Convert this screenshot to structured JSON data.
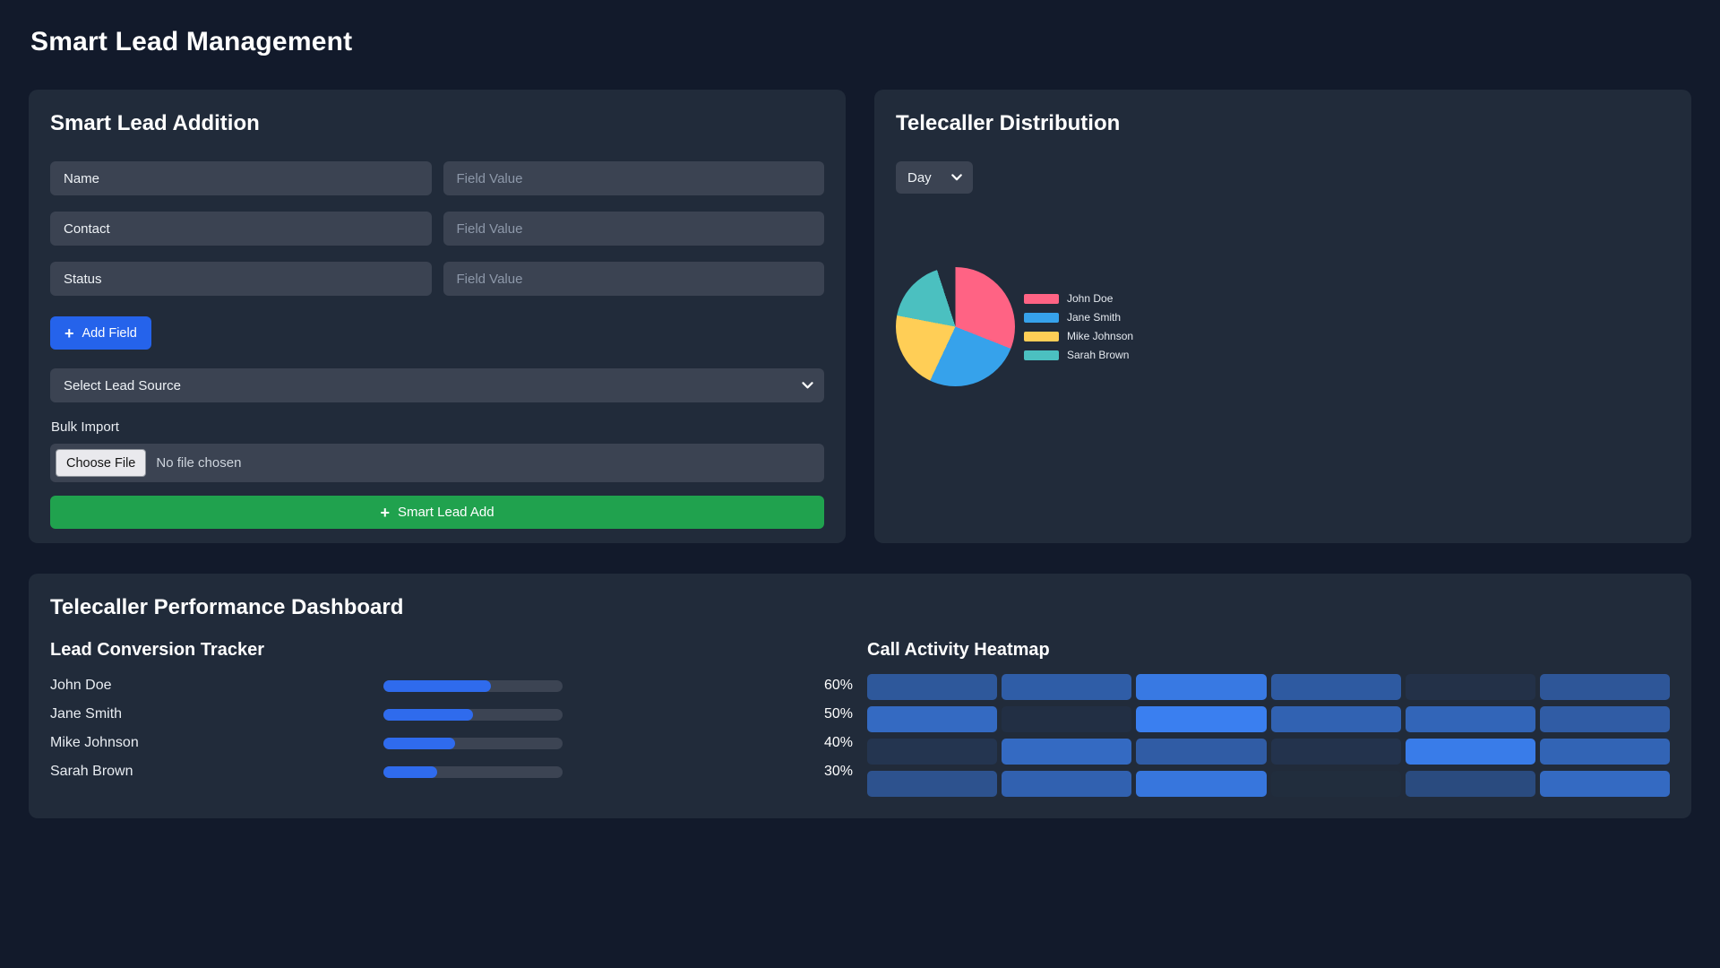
{
  "page": {
    "title": "Smart Lead Management"
  },
  "lead_form": {
    "title": "Smart Lead Addition",
    "rows": [
      {
        "field_name": "Name",
        "value_placeholder": "Field Value"
      },
      {
        "field_name": "Contact",
        "value_placeholder": "Field Value"
      },
      {
        "field_name": "Status",
        "value_placeholder": "Field Value"
      }
    ],
    "add_field_button": "Add Field",
    "lead_source_selected": "Select Lead Source",
    "bulk_import_label": "Bulk Import",
    "choose_file_button": "Choose File",
    "file_status": "No file chosen",
    "submit_button": "Smart Lead Add"
  },
  "distribution": {
    "title": "Telecaller Distribution",
    "period_selected": "Day"
  },
  "performance": {
    "title": "Telecaller Performance Dashboard",
    "tracker_title": "Lead Conversion Tracker",
    "heatmap_title": "Call Activity Heatmap"
  },
  "chart_data": [
    {
      "type": "pie",
      "title": "Telecaller Distribution",
      "labels": [
        "John Doe",
        "Jane Smith",
        "Mike Johnson",
        "Sarah Brown"
      ],
      "values": [
        31,
        26,
        21,
        17
      ],
      "unit": "percent-of-circle (remaining 5% unfilled gap at top-left)",
      "colors": [
        "#ff6384",
        "#36a2eb",
        "#ffce56",
        "#4bc0c0"
      ],
      "legend_position": "right",
      "start_angle_deg": 0
    },
    {
      "type": "bar",
      "title": "Lead Conversion Tracker",
      "categories": [
        "John Doe",
        "Jane Smith",
        "Mike Johnson",
        "Sarah Brown"
      ],
      "values": [
        60,
        50,
        40,
        30
      ],
      "value_labels": [
        "60%",
        "50%",
        "40%",
        "30%"
      ],
      "xlim": [
        0,
        100
      ],
      "orientation": "horizontal"
    },
    {
      "type": "heatmap",
      "title": "Call Activity Heatmap",
      "columns": 6,
      "rows": 4,
      "values": [
        [
          52,
          58,
          90,
          55,
          8,
          50
        ],
        [
          72,
          5,
          97,
          64,
          67,
          57
        ],
        [
          12,
          73,
          57,
          10,
          93,
          66
        ],
        [
          45,
          63,
          87,
          2,
          37,
          72
        ]
      ],
      "base_color": "#3b82f6",
      "scale": "0-100 mapped to cell color opacity"
    }
  ],
  "colors": {
    "page_bg": "#121a2b",
    "card_bg": "#212b3a",
    "input_bg": "#3b4352",
    "accent_blue": "#2563eb",
    "accent_green": "#20a24e",
    "bar_fill": "#2f6bed",
    "bar_track": "#3c4453",
    "heat_base": "#3b82f6"
  }
}
